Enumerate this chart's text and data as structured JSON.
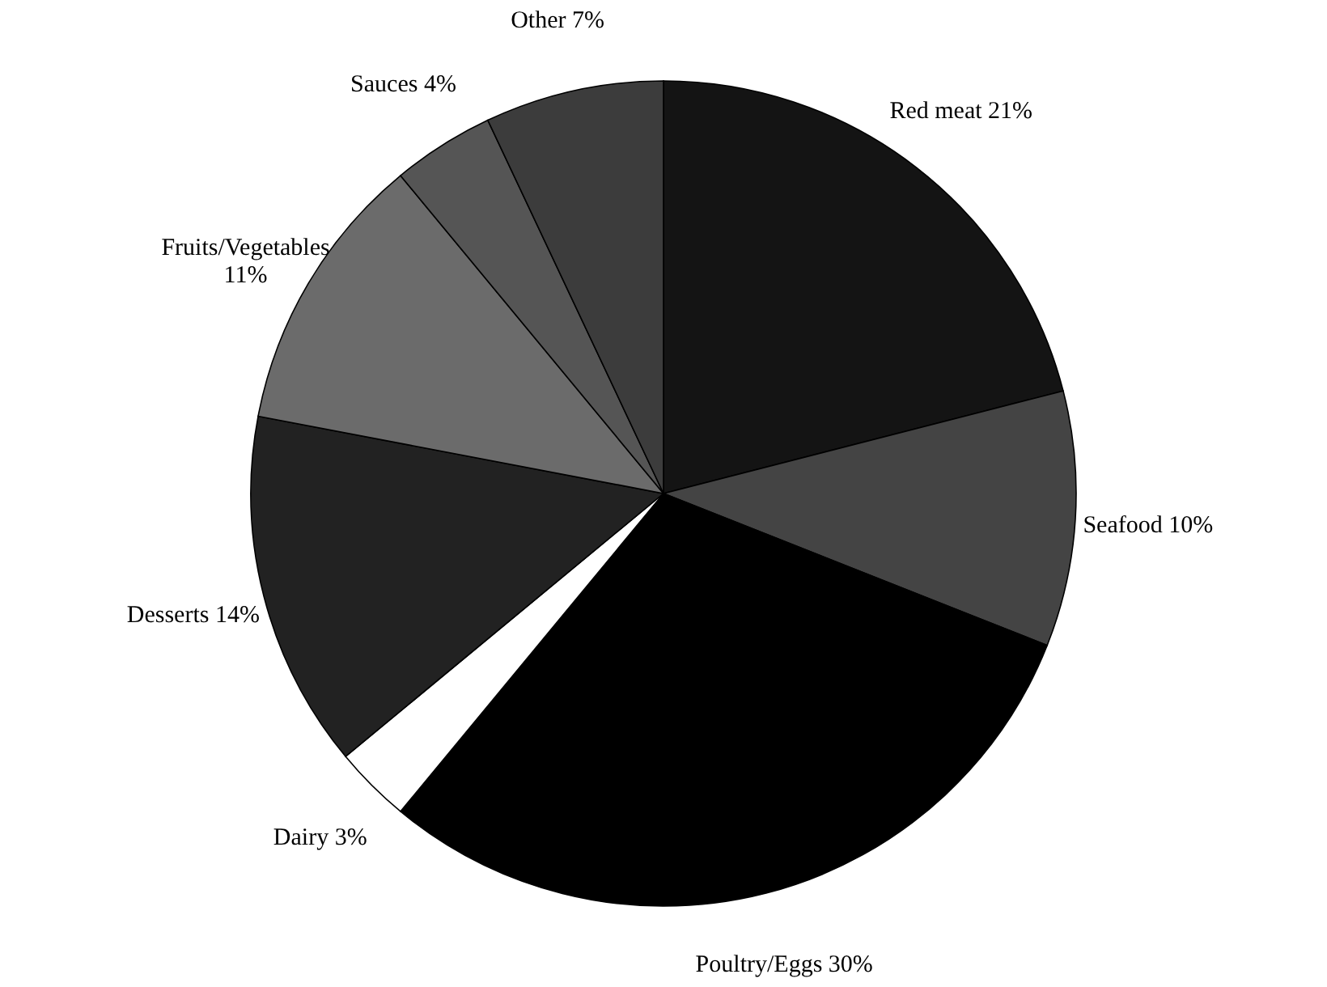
{
  "chart_data": {
    "type": "pie",
    "categories": [
      "Red meat",
      "Seafood",
      "Poultry/Eggs",
      "Dairy",
      "Desserts",
      "Fruits/Vegetables",
      "Sauces",
      "Other"
    ],
    "values": [
      21,
      10,
      30,
      3,
      14,
      11,
      4,
      7
    ],
    "value_labels": [
      "21%",
      "10%",
      "30%",
      "3%",
      "14%",
      "11%",
      "4%",
      "7%"
    ],
    "colors": [
      "#141414",
      "#444444",
      "#000000",
      "#ffffff",
      "#222222",
      "#6b6b6b",
      "#555555",
      "#3c3c3c"
    ]
  }
}
